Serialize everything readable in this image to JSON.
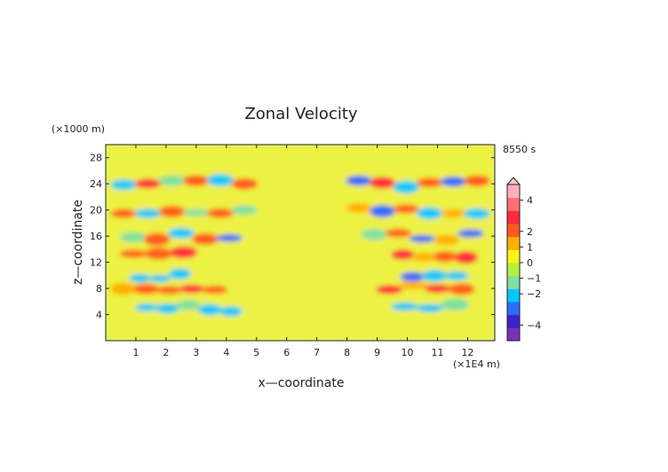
{
  "chart_data": {
    "type": "heatmap",
    "title": "Zonal Velocity",
    "xlabel": "x—coordinate",
    "ylabel": "z—coordinate",
    "x_unit": "(×1E4 m)",
    "y_unit": "(×1000 m)",
    "time_label": "8550 s",
    "xlim": [
      0,
      12.9
    ],
    "ylim": [
      0,
      30
    ],
    "x_ticks": [
      1,
      2,
      3,
      4,
      5,
      6,
      7,
      8,
      9,
      10,
      11,
      12
    ],
    "y_ticks": [
      4,
      8,
      12,
      16,
      20,
      24,
      28
    ],
    "colorbar": {
      "range": [
        -5,
        5
      ],
      "tick_values": [
        4,
        2,
        1,
        0,
        -1,
        -2,
        -4
      ],
      "tick_labels": [
        "4",
        "2",
        "1",
        "0",
        "−1",
        "−2",
        "−4"
      ],
      "colors": [
        "#7b2fb8",
        "#3b22c8",
        "#2e6bff",
        "#00c8ff",
        "#7fe0a0",
        "#b6f03c",
        "#fff21c",
        "#ffb000",
        "#ff5a1e",
        "#ff2a3a",
        "#ff6f7a",
        "#ffb0b8"
      ],
      "overflow_top": true
    },
    "field_description_values": {
      "background_value": 0.3,
      "bands": [
        {
          "z": 5,
          "sign": -1,
          "x_ranges": [
            [
              1,
              4.5
            ],
            [
              9.5,
              12
            ]
          ]
        },
        {
          "z": 8,
          "sign": 1,
          "x_ranges": [
            [
              0.2,
              4
            ],
            [
              9,
              12.2
            ]
          ]
        },
        {
          "z": 10,
          "sign": -1,
          "x_ranges": [
            [
              0.8,
              2.8
            ],
            [
              9.8,
              12
            ]
          ]
        },
        {
          "z": 13,
          "sign": 1,
          "x_ranges": [
            [
              0.5,
              3
            ],
            [
              9.5,
              12.3
            ]
          ]
        },
        {
          "z": 16,
          "sign": -1,
          "x_ranges": [
            [
              0.5,
              4.5
            ],
            [
              8.5,
              12.5
            ]
          ]
        },
        {
          "z": 20,
          "sign": 1,
          "x_ranges": [
            [
              0.2,
              5
            ],
            [
              8,
              12.7
            ]
          ]
        },
        {
          "z": 24,
          "sign": -1,
          "x_ranges": [
            [
              0.2,
              5
            ],
            [
              8,
              12.7
            ]
          ]
        }
      ]
    }
  }
}
